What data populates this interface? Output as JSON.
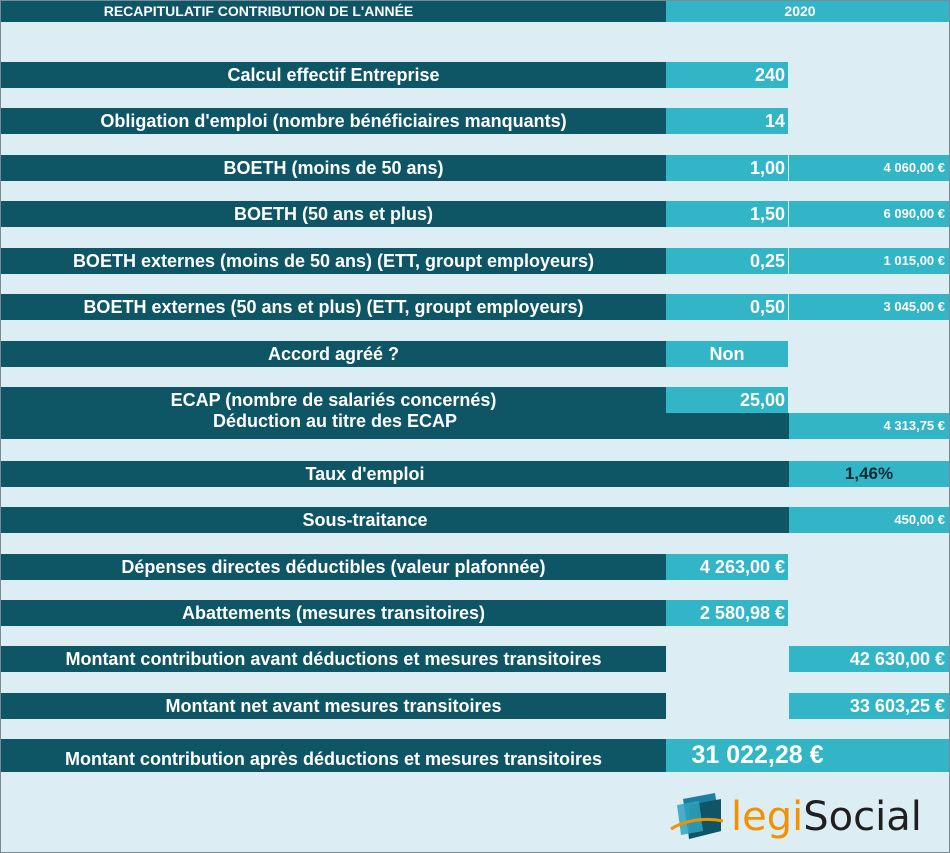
{
  "header": {
    "title": "RECAPITULATIF CONTRIBUTION DE L'ANNÉE",
    "year": "2020"
  },
  "rows": [
    {
      "label": "Calcul effectif Entreprise",
      "value": "240",
      "amount": ""
    },
    {
      "label": "Obligation d'emploi (nombre bénéficiaires manquants)",
      "value": "14",
      "amount": ""
    },
    {
      "label": "BOETH (moins de 50 ans)",
      "value": "1,00",
      "amount": "4 060,00 €"
    },
    {
      "label": "BOETH (50 ans et plus)",
      "value": "1,50",
      "amount": "6 090,00 €"
    },
    {
      "label": "BOETH  externes (moins de 50 ans) (ETT, groupt employeurs)",
      "value": "0,25",
      "amount": "1 015,00 €"
    },
    {
      "label": "BOETH  externes (50 ans et plus) (ETT, groupt employeurs)",
      "value": "0,50",
      "amount": "3 045,00 €"
    },
    {
      "label": "Accord agréé ?",
      "value": "Non",
      "amount": ""
    },
    {
      "label": "ECAP (nombre de salariés concernés)",
      "value": "25,00",
      "amount": ""
    },
    {
      "label": "Déduction au titre des ECAP",
      "value": "",
      "amount": "4 313,75 €"
    },
    {
      "label": "Taux d'emploi",
      "value": "",
      "amount": "1,46%"
    },
    {
      "label": "Sous-traitance",
      "value": "",
      "amount": "450,00 €"
    },
    {
      "label": "Dépenses directes déductibles (valeur plafonnée)",
      "value": "4 263,00 €",
      "amount": ""
    },
    {
      "label": "Abattements (mesures transitoires)",
      "value": "2 580,98 €",
      "amount": ""
    },
    {
      "label": "Montant contribution avant déductions et mesures transitoires",
      "value": "",
      "amount": "42 630,00 €"
    },
    {
      "label": "Montant net avant mesures transitoires",
      "value": "",
      "amount": "33 603,25 €"
    }
  ],
  "total": {
    "label": "Montant contribution après déductions et mesures transitoires",
    "amount": "31 022,28 €"
  },
  "logo": {
    "text_legi": "legi",
    "text_social": "Social",
    "accent_color": "#f39200",
    "mark_color": "#1a7fa0"
  }
}
